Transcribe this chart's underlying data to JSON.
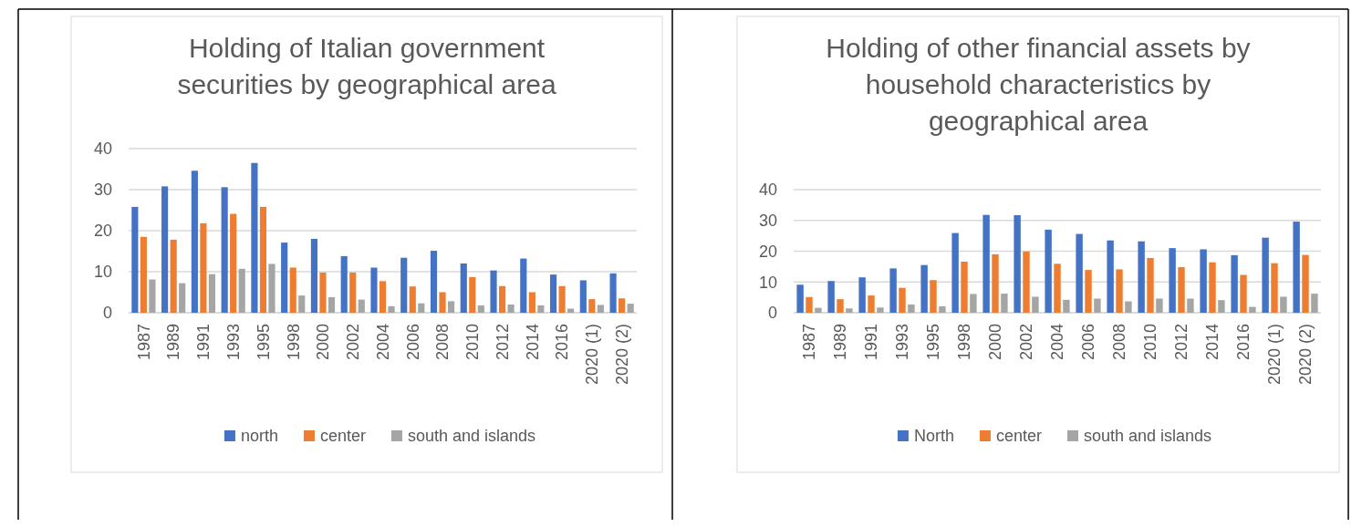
{
  "chart_data": [
    {
      "type": "bar",
      "title": "Holding of Italian government securities by geographical area",
      "categories": [
        "1987",
        "1989",
        "1991",
        "1993",
        "1995",
        "1998",
        "2000",
        "2002",
        "2004",
        "2006",
        "2008",
        "2010",
        "2012",
        "2014",
        "2016",
        "2020 (1)",
        "2020 (2)"
      ],
      "series": [
        {
          "name": "north",
          "color": "#4472c4",
          "values": [
            25.8,
            30.8,
            34.6,
            30.6,
            36.5,
            17.1,
            18,
            13.8,
            11,
            13.4,
            15.1,
            12,
            10.3,
            13.2,
            9.3,
            7.9,
            9.6
          ]
        },
        {
          "name": "center",
          "color": "#ed7d31",
          "values": [
            18.5,
            17.8,
            21.8,
            24.1,
            25.8,
            11,
            9.8,
            9.8,
            7.7,
            6.4,
            5,
            8.7,
            6.5,
            5,
            6.5,
            3.3,
            3.5
          ]
        },
        {
          "name": "south and islands",
          "color": "#a5a5a5",
          "values": [
            8.1,
            7.2,
            9.4,
            10.7,
            11.9,
            4.2,
            3.8,
            3.2,
            1.6,
            2.3,
            2.8,
            1.8,
            2,
            1.8,
            1,
            1.9,
            2.2
          ]
        }
      ],
      "ylim": [
        0,
        40
      ],
      "yticks": [
        0,
        10,
        20,
        30,
        40
      ],
      "grid": "y",
      "legend": "bottom"
    },
    {
      "type": "bar",
      "title": "Holding of other financial assets by household characteristics by geographical area",
      "categories": [
        "1987",
        "1989",
        "1991",
        "1993",
        "1995",
        "1998",
        "2000",
        "2002",
        "2004",
        "2006",
        "2008",
        "2010",
        "2012",
        "2014",
        "2016",
        "2020 (1)",
        "2020 (2)"
      ],
      "series": [
        {
          "name": "North",
          "color": "#4472c4",
          "values": [
            9.1,
            10.3,
            11.5,
            14.4,
            15.5,
            25.9,
            31.8,
            31.7,
            27,
            25.6,
            23.5,
            23.2,
            21,
            20.6,
            18.7,
            24.4,
            29.6
          ]
        },
        {
          "name": "center",
          "color": "#ed7d31",
          "values": [
            5.1,
            4.4,
            5.6,
            8.1,
            10.6,
            16.6,
            19,
            19.9,
            15.9,
            13.9,
            14.1,
            17.8,
            14.8,
            16.4,
            12.3,
            16.1,
            18.8
          ]
        },
        {
          "name": "south and islands",
          "color": "#a5a5a5",
          "values": [
            1.6,
            1.4,
            1.7,
            2.7,
            2.1,
            6.1,
            6.2,
            5.2,
            4.2,
            4.6,
            3.7,
            4.6,
            4.6,
            4.1,
            1.9,
            5.2,
            6.2
          ]
        }
      ],
      "ylim": [
        0,
        40
      ],
      "yticks": [
        0,
        10,
        20,
        30,
        40
      ],
      "grid": "y",
      "legend": "bottom"
    }
  ]
}
